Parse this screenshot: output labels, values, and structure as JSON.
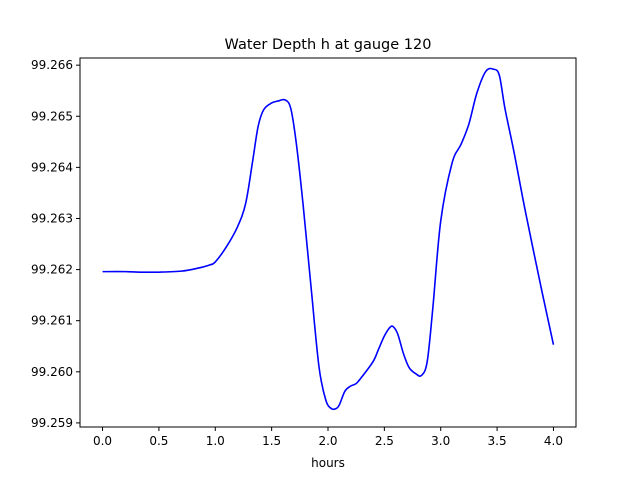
{
  "chart_data": {
    "type": "line",
    "title": "Water Depth h at gauge 120",
    "xlabel": "hours",
    "ylabel": "",
    "xlim": [
      -0.2,
      4.2
    ],
    "ylim": [
      99.25892,
      99.26614
    ],
    "xticks": [
      "0.0",
      "0.5",
      "1.0",
      "1.5",
      "2.0",
      "2.5",
      "3.0",
      "3.5",
      "4.0"
    ],
    "yticks": [
      "99.259",
      "99.260",
      "99.261",
      "99.262",
      "99.263",
      "99.264",
      "99.265",
      "99.266"
    ],
    "grid": false,
    "legend": "none",
    "series": [
      {
        "color": "#0000ff",
        "x": [
          0.0,
          0.2,
          0.35,
          0.5,
          0.7,
          0.85,
          0.95,
          1.0,
          1.1,
          1.2,
          1.27,
          1.33,
          1.38,
          1.43,
          1.5,
          1.56,
          1.62,
          1.67,
          1.72,
          1.78,
          1.85,
          1.92,
          1.98,
          2.03,
          2.07,
          2.1,
          2.15,
          2.2,
          2.25,
          2.3,
          2.4,
          2.45,
          2.5,
          2.55,
          2.58,
          2.62,
          2.67,
          2.72,
          2.78,
          2.83,
          2.88,
          2.93,
          3.0,
          3.1,
          3.18,
          3.25,
          3.32,
          3.4,
          3.47,
          3.52,
          3.57,
          3.65,
          3.75,
          3.9,
          4.0
        ],
        "y": [
          99.26196,
          99.26196,
          99.26195,
          99.26195,
          99.26197,
          99.26203,
          99.26209,
          99.26215,
          99.26245,
          99.26285,
          99.2633,
          99.2641,
          99.2648,
          99.26513,
          99.26526,
          99.2653,
          99.26532,
          99.26515,
          99.26445,
          99.26325,
          99.26165,
          99.2601,
          99.25945,
          99.25928,
          99.25928,
          99.25935,
          99.25962,
          99.25972,
          99.25977,
          99.2599,
          99.2602,
          99.26045,
          99.2607,
          99.26087,
          99.26088,
          99.26073,
          99.26035,
          99.26008,
          99.25996,
          99.25993,
          99.2602,
          99.26125,
          99.26295,
          99.26408,
          99.26445,
          99.26485,
          99.26545,
          99.26588,
          99.26592,
          99.2658,
          99.26515,
          99.2643,
          99.26315,
          99.26155,
          99.26053
        ]
      }
    ]
  }
}
